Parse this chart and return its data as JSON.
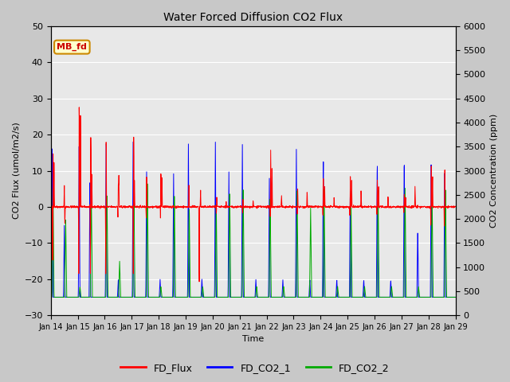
{
  "title": "Water Forced Diffusion CO2 Flux",
  "xlabel": "Time",
  "ylabel_left": "CO2 Flux (umol/m2/s)",
  "ylabel_right": "CO2 Concentration (ppm)",
  "ylim_left": [
    -30,
    50
  ],
  "ylim_right": [
    0,
    6000
  ],
  "yticks_left": [
    -30,
    -20,
    -10,
    0,
    10,
    20,
    30,
    40,
    50
  ],
  "yticks_right": [
    0,
    500,
    1000,
    1500,
    2000,
    2500,
    3000,
    3500,
    4000,
    4500,
    5000,
    5500,
    6000
  ],
  "x_tick_labels": [
    "Jan 14",
    "Jan 15",
    "Jan 16",
    "Jan 17",
    "Jan 18",
    "Jan 19",
    "Jan 20",
    "Jan 21",
    "Jan 22",
    "Jan 23",
    "Jan 24",
    "Jan 25",
    "Jan 26",
    "Jan 27",
    "Jan 28",
    "Jan 29"
  ],
  "annotation_text": "MB_fd",
  "annotation_box_color": "#FFFFCC",
  "annotation_box_edge": "#CC8800",
  "colors": {
    "FD_Flux": "#FF0000",
    "FD_CO2_1": "#0000FF",
    "FD_CO2_2": "#00AA00"
  },
  "legend_labels": [
    "FD_Flux",
    "FD_CO2_1",
    "FD_CO2_2"
  ],
  "background_color": "#C8C8C8",
  "plot_bg_color": "#E8E8E8",
  "seed": 42,
  "n_days": 15,
  "pts_per_day": 144
}
